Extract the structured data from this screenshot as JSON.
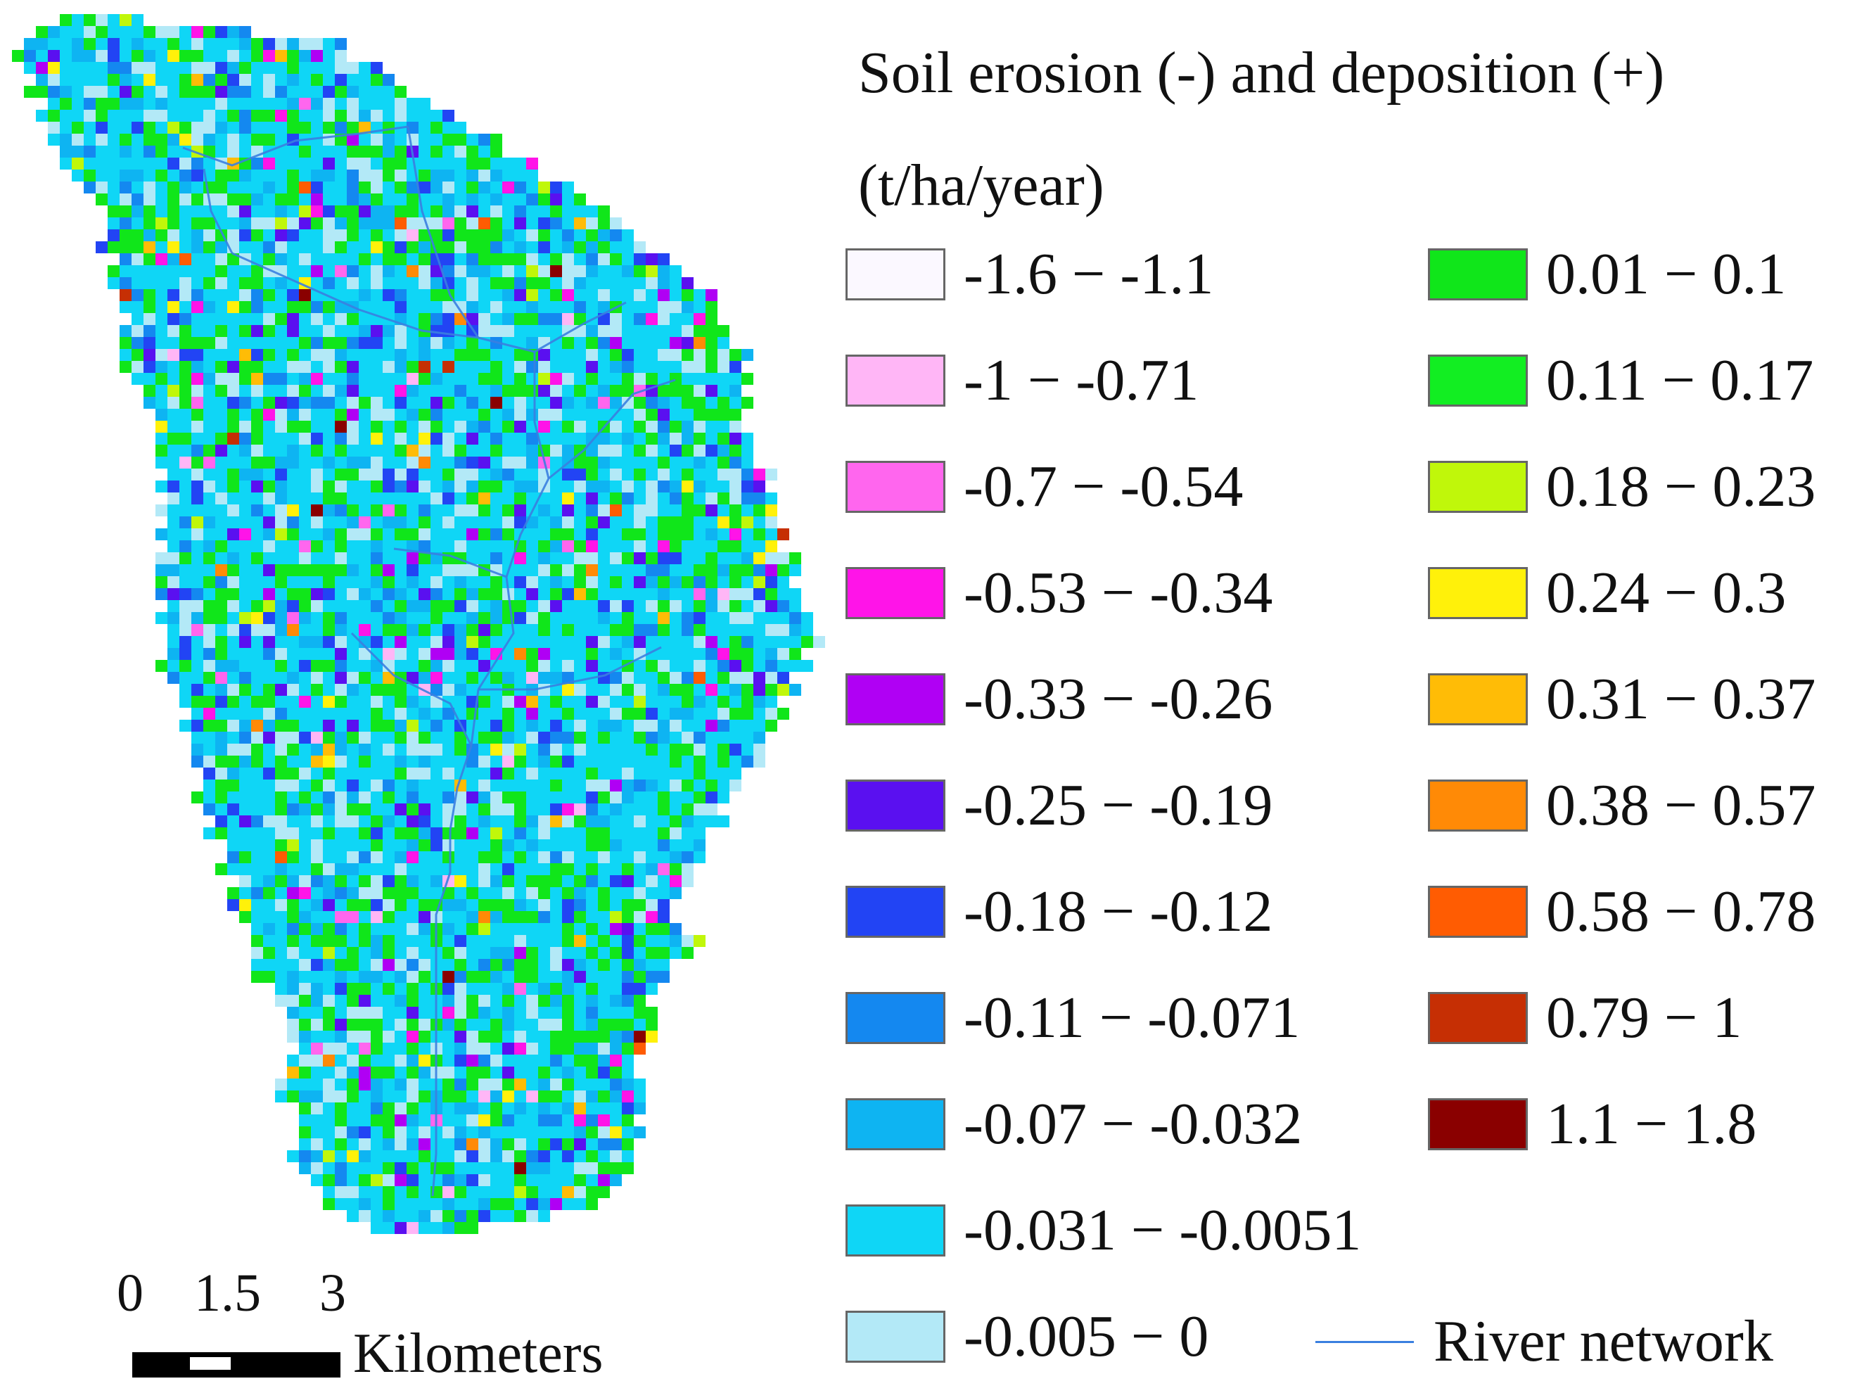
{
  "legend": {
    "title_line1": "Soil erosion (-) and deposition (+)",
    "title_line2": "(t/ha/year)",
    "classes": [
      {
        "label": "-1.6 − -1.1",
        "color": "#fbf8ff"
      },
      {
        "label": "-1 − -0.71",
        "color": "#ffb6f6"
      },
      {
        "label": "-0.7 − -0.54",
        "color": "#ff66ee"
      },
      {
        "label": "-0.53 − -0.34",
        "color": "#ff14e8"
      },
      {
        "label": "-0.33 − -0.26",
        "color": "#b000f4"
      },
      {
        "label": "-0.25 − -0.19",
        "color": "#5a10f0"
      },
      {
        "label": "-0.18 − -0.12",
        "color": "#2244f4"
      },
      {
        "label": "-0.11 − -0.071",
        "color": "#1488f0"
      },
      {
        "label": "-0.07 − -0.032",
        "color": "#0eb4f2"
      },
      {
        "label": "-0.031 − -0.0051",
        "color": "#0fd6f6"
      },
      {
        "label": "-0.005 − 0",
        "color": "#b3e9f7"
      },
      {
        "label": "0.01 − 0.1",
        "color": "#10e61a"
      },
      {
        "label": "0.11 − 0.17",
        "color": "#12ee22"
      },
      {
        "label": "0.18 − 0.23",
        "color": "#c0f70a"
      },
      {
        "label": "0.24 − 0.3",
        "color": "#fff10a"
      },
      {
        "label": "0.31 − 0.37",
        "color": "#ffbc06"
      },
      {
        "label": "0.38 − 0.57",
        "color": "#ff8a06"
      },
      {
        "label": "0.58 − 0.78",
        "color": "#ff5c02"
      },
      {
        "label": "0.79 − 1",
        "color": "#c62f04"
      },
      {
        "label": "1.1 − 1.8",
        "color": "#8a0000"
      }
    ],
    "river_label": "River network",
    "river_color": "#3a7fe0"
  },
  "scalebar": {
    "ticks": [
      "0",
      "1.5",
      "3"
    ],
    "units": "Kilometers"
  }
}
